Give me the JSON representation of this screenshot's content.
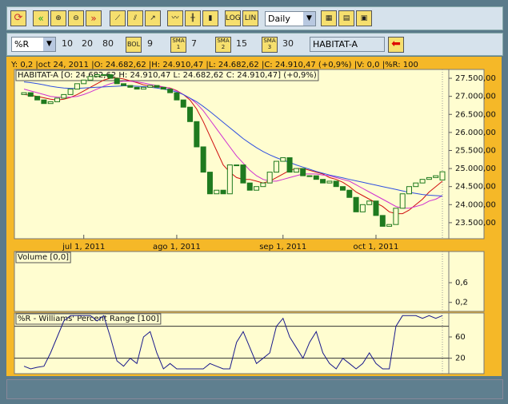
{
  "toolbar": {
    "log": "LOG",
    "lin": "LIN",
    "period": "Daily",
    "indicator": "%R",
    "indicator_params": [
      "10",
      "20",
      "80"
    ],
    "bol": "BOL",
    "bol_param": "9",
    "sma": [
      {
        "label": "SMA",
        "number": "1",
        "period": "7"
      },
      {
        "label": "SMA",
        "number": "2",
        "period": "15"
      },
      {
        "label": "SMA",
        "number": "3",
        "period": "30"
      }
    ],
    "symbol": "HABITAT-A"
  },
  "status": "Y: 0,2 |oct 24, 2011 |O: 24.682,62 |H: 24.910,47 |L: 24.682,62 |C: 24.910,47 (+0,9%) |V: 0,0 |%R: 100",
  "chart_data": [
    {
      "type": "candlestick",
      "legend": "HABITAT-A [O: 24.682,62  H: 24.910,47  L: 24.682,62  C: 24.910,47] (+0,9%)",
      "categories": [
        null,
        null,
        null,
        null,
        null,
        null,
        null,
        null,
        null,
        "jul 1, 2011",
        null,
        null,
        null,
        null,
        null,
        null,
        null,
        null,
        null,
        null,
        null,
        null,
        null,
        "ago 1, 2011",
        null,
        null,
        null,
        null,
        null,
        null,
        null,
        null,
        null,
        null,
        null,
        null,
        null,
        null,
        null,
        "sep 1, 2011",
        null,
        null,
        null,
        null,
        null,
        null,
        null,
        null,
        null,
        null,
        null,
        null,
        null,
        "oct 1, 2011",
        null,
        null,
        null,
        null,
        null,
        null,
        null,
        null,
        null,
        null
      ],
      "open": [
        27050,
        27100,
        27000,
        26900,
        26800,
        26850,
        26950,
        27050,
        27200,
        27350,
        27450,
        27550,
        27600,
        27600,
        27500,
        27350,
        27300,
        27250,
        27200,
        27250,
        27300,
        27250,
        27200,
        27100,
        26900,
        26700,
        26300,
        25600,
        24900,
        24300,
        24400,
        24300,
        25100,
        25100,
        24600,
        24400,
        24500,
        24600,
        24900,
        25200,
        25300,
        24900,
        25000,
        24800,
        24800,
        24700,
        24600,
        24650,
        24500,
        24400,
        24200,
        23800,
        24000,
        24100,
        23700,
        23400,
        23450,
        23900,
        24300,
        24500,
        24600,
        24700,
        24750,
        24682.62
      ],
      "close": [
        27100,
        27000,
        26900,
        26800,
        26850,
        26950,
        27050,
        27200,
        27350,
        27450,
        27550,
        27600,
        27600,
        27500,
        27350,
        27300,
        27250,
        27200,
        27250,
        27300,
        27250,
        27200,
        27100,
        26900,
        26700,
        26300,
        25600,
        24900,
        24300,
        24400,
        24300,
        25100,
        25100,
        24600,
        24400,
        24500,
        24600,
        24900,
        25200,
        25300,
        24900,
        25000,
        24800,
        24800,
        24700,
        24600,
        24650,
        24500,
        24400,
        24200,
        23800,
        24000,
        24100,
        23700,
        23400,
        23450,
        23900,
        24300,
        24500,
        24600,
        24700,
        24750,
        24800,
        24910.47
      ],
      "color": "#1f7a1f",
      "series": [
        {
          "color": "#d01010",
          "values": [
            27050,
            27030,
            27000,
            26960,
            26920,
            26900,
            26920,
            26970,
            27050,
            27150,
            27250,
            27350,
            27450,
            27500,
            27510,
            27480,
            27430,
            27380,
            27320,
            27280,
            27260,
            27250,
            27230,
            27160,
            27050,
            26900,
            26650,
            26300,
            25900,
            25500,
            25100,
            24900,
            24750,
            24700,
            24700,
            24650,
            24600,
            24650,
            24750,
            24850,
            24950,
            25000,
            25000,
            24950,
            24900,
            24850,
            24750,
            24700,
            24620,
            24500,
            24350,
            24250,
            24150,
            24050,
            23950,
            23800,
            23750,
            23750,
            23850,
            24000,
            24150,
            24350,
            24500,
            24650
          ]
        },
        {
          "color": "#d030d0",
          "values": [
            27200,
            27150,
            27100,
            27050,
            27000,
            26980,
            26970,
            26980,
            27000,
            27050,
            27120,
            27200,
            27280,
            27350,
            27400,
            27420,
            27420,
            27400,
            27370,
            27330,
            27300,
            27260,
            27220,
            27150,
            27050,
            26950,
            26800,
            26600,
            26350,
            26100,
            25850,
            25600,
            25350,
            25150,
            24950,
            24800,
            24700,
            24650,
            24650,
            24700,
            24750,
            24800,
            24850,
            24850,
            24850,
            24820,
            24800,
            24750,
            24700,
            24650,
            24550,
            24450,
            24350,
            24250,
            24150,
            24050,
            23950,
            23900,
            23900,
            23950,
            24000,
            24100,
            24150,
            24250
          ]
        },
        {
          "color": "#3050e0",
          "values": [
            27400,
            27380,
            27350,
            27320,
            27280,
            27250,
            27230,
            27220,
            27220,
            27230,
            27240,
            27250,
            27260,
            27270,
            27280,
            27290,
            27290,
            27280,
            27270,
            27250,
            27230,
            27200,
            27170,
            27120,
            27050,
            26950,
            26850,
            26720,
            26580,
            26430,
            26280,
            26130,
            25980,
            25830,
            25700,
            25580,
            25470,
            25380,
            25300,
            25230,
            25170,
            25100,
            25040,
            24980,
            24920,
            24870,
            24820,
            24780,
            24740,
            24700,
            24660,
            24620,
            24580,
            24540,
            24500,
            24460,
            24420,
            24380,
            24340,
            24310,
            24280,
            24260,
            24250,
            24240
          ]
        }
      ],
      "ylim": [
        23100,
        27700
      ],
      "yticks": [
        {
          "value": 23500,
          "label": "23.500,00"
        },
        {
          "value": 24000,
          "label": "24.000,00"
        },
        {
          "value": 24500,
          "label": "24.500,00"
        },
        {
          "value": 25000,
          "label": "25.000,00"
        },
        {
          "value": 25500,
          "label": "25.500,00"
        },
        {
          "value": 26000,
          "label": "26.000,00"
        },
        {
          "value": 26500,
          "label": "26.500,00"
        },
        {
          "value": 27000,
          "label": "27.000,00"
        },
        {
          "value": 27500,
          "label": "27.500,00"
        }
      ]
    },
    {
      "type": "bar",
      "title": "Volume [0,0]",
      "ylim": [
        0.05,
        1.2
      ],
      "yticks": [
        {
          "value": 0.2,
          "label": "0,2"
        },
        {
          "value": 0.6,
          "label": "0,6"
        }
      ]
    },
    {
      "type": "line",
      "title": "%R - Williams' Percent Range [100]",
      "color": "#1a1a8c",
      "values": [
        5,
        0,
        3,
        5,
        30,
        60,
        90,
        100,
        100,
        100,
        100,
        90,
        100,
        60,
        15,
        5,
        20,
        10,
        60,
        70,
        30,
        0,
        10,
        0,
        0,
        0,
        0,
        0,
        10,
        5,
        0,
        0,
        50,
        70,
        40,
        10,
        20,
        30,
        80,
        95,
        60,
        40,
        20,
        50,
        70,
        30,
        10,
        0,
        20,
        10,
        0,
        10,
        30,
        10,
        0,
        0,
        80,
        100,
        100,
        100,
        95,
        100,
        95,
        100
      ],
      "levels": [
        20,
        80
      ],
      "ylim": [
        -6,
        102
      ],
      "yticks": [
        20,
        60
      ]
    }
  ]
}
